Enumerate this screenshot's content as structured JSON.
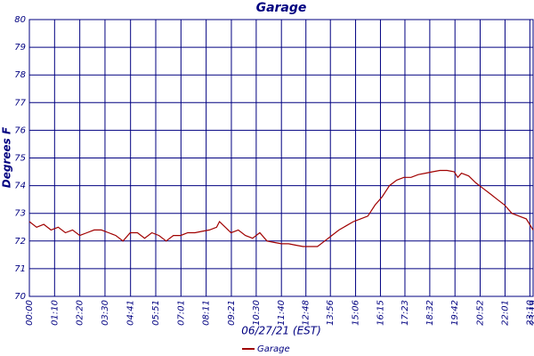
{
  "chart_data": {
    "type": "line",
    "title": "Garage",
    "x_label": "06/27/21 (EST)",
    "y_label": "Degrees F",
    "x": [
      0,
      20,
      40,
      60,
      80,
      100,
      120,
      140,
      160,
      180,
      200,
      220,
      240,
      260,
      280,
      300,
      320,
      340,
      360,
      380,
      400,
      420,
      440,
      460,
      480,
      500,
      520,
      528,
      560,
      580,
      600,
      620,
      640,
      660,
      680,
      700,
      720,
      740,
      760,
      780,
      800,
      820,
      840,
      860,
      880,
      900,
      920,
      940,
      960,
      980,
      1000,
      1020,
      1040,
      1060,
      1080,
      1100,
      1120,
      1140,
      1160,
      1180,
      1190,
      1200,
      1220,
      1240,
      1260,
      1280,
      1300,
      1320,
      1340,
      1360,
      1380,
      1399
    ],
    "series": [
      {
        "name": "Garage",
        "color": "#a00000",
        "values": [
          72.7,
          72.5,
          72.6,
          72.4,
          72.5,
          72.3,
          72.4,
          72.2,
          72.3,
          72.4,
          72.4,
          72.3,
          72.2,
          72.0,
          72.3,
          72.3,
          72.1,
          72.3,
          72.2,
          72.0,
          72.2,
          72.2,
          72.3,
          72.3,
          72.35,
          72.4,
          72.5,
          72.7,
          72.3,
          72.4,
          72.2,
          72.1,
          72.3,
          72.0,
          71.95,
          71.9,
          71.9,
          71.85,
          71.8,
          71.8,
          71.8,
          72.0,
          72.2,
          72.4,
          72.55,
          72.7,
          72.8,
          72.9,
          73.3,
          73.6,
          74.0,
          74.2,
          74.3,
          74.3,
          74.4,
          74.45,
          74.5,
          74.55,
          74.55,
          74.5,
          74.3,
          74.45,
          74.35,
          74.1,
          73.9,
          73.7,
          73.5,
          73.3,
          73.0,
          72.9,
          72.8,
          72.4
        ]
      }
    ],
    "xlim": [
      0,
      1399
    ],
    "xticks": [
      {
        "value": 0,
        "label": "00:00"
      },
      {
        "value": 70,
        "label": "01:10"
      },
      {
        "value": 140,
        "label": "02:20"
      },
      {
        "value": 210,
        "label": "03:30"
      },
      {
        "value": 281,
        "label": "04:41"
      },
      {
        "value": 351,
        "label": "05:51"
      },
      {
        "value": 421,
        "label": "07:01"
      },
      {
        "value": 491,
        "label": "08:11"
      },
      {
        "value": 561,
        "label": "09:21"
      },
      {
        "value": 630,
        "label": "10:30"
      },
      {
        "value": 700,
        "label": "11:40"
      },
      {
        "value": 768,
        "label": "12:48"
      },
      {
        "value": 836,
        "label": "13:56"
      },
      {
        "value": 906,
        "label": "15:06"
      },
      {
        "value": 975,
        "label": "16:15"
      },
      {
        "value": 1043,
        "label": "17:23"
      },
      {
        "value": 1112,
        "label": "18:32"
      },
      {
        "value": 1182,
        "label": "19:42"
      },
      {
        "value": 1252,
        "label": "20:52"
      },
      {
        "value": 1321,
        "label": "22:01"
      },
      {
        "value": 1390,
        "label": "23:10"
      },
      {
        "value": 1399,
        "label": "23:19"
      }
    ],
    "ylim": [
      70,
      80
    ],
    "yticks": [
      70,
      71,
      72,
      73,
      74,
      75,
      76,
      77,
      78,
      79,
      80
    ],
    "grid": true
  }
}
